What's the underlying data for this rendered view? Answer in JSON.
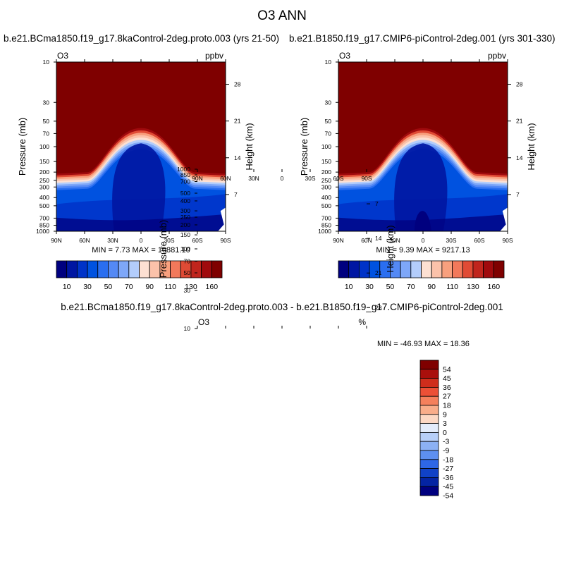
{
  "title": "O3 ANN",
  "palettes": {
    "abs": [
      "#00007f",
      "#0016a2",
      "#0033c8",
      "#0052e0",
      "#2a6ef0",
      "#5489f5",
      "#7ea7f8",
      "#b3cdfb",
      "#fde0d2",
      "#fbc2aa",
      "#f8a07e",
      "#f2795b",
      "#e04b35",
      "#c0251d",
      "#a00a0d",
      "#7f0000"
    ],
    "diff": [
      "#7f0000",
      "#a90f0c",
      "#cf2d1c",
      "#ec5036",
      "#f5805c",
      "#f9ad8a",
      "#fcd8c4",
      "#e3ecfb",
      "#b7cff8",
      "#8cb1f4",
      "#5d8ff0",
      "#2e67e6",
      "#1042c7",
      "#0424a3",
      "#00007f"
    ]
  },
  "chart_data": [
    {
      "type": "contour",
      "id": "left",
      "title": "b.e21.BCma1850.f19_g17.8kaControl-2deg.proto.003 (yrs 21-50)",
      "variable": "O3",
      "units": "ppbv",
      "min_label": "MIN =   7.73   MAX = 10881.10",
      "min": 7.73,
      "max": 10881.1,
      "xlabel": "",
      "ylabel": "Pressure (mb)",
      "ylabel_right": "Height (km)",
      "x_ticks": [
        "90N",
        "60N",
        "30N",
        "0",
        "30S",
        "60S",
        "90S"
      ],
      "y_ticks": [
        "10",
        "30",
        "50",
        "70",
        "100",
        "150",
        "200",
        "250",
        "300",
        "400",
        "500",
        "700",
        "850",
        "1000"
      ],
      "height_ticks": [
        "28",
        "21",
        "14",
        "7"
      ],
      "colorbar_labels": [
        "10",
        "30",
        "50",
        "70",
        "90",
        "110",
        "130",
        "160"
      ]
    },
    {
      "type": "contour",
      "id": "right",
      "title": "b.e21.B1850.f19_g17.CMIP6-piControl-2deg.001 (yrs 301-330)",
      "variable": "O3",
      "units": "ppbv",
      "min_label": "MIN =   9.39   MAX = 9217.13",
      "min": 9.39,
      "max": 9217.13,
      "xlabel": "",
      "ylabel": "Pressure (mb)",
      "ylabel_right": "Height (km)",
      "x_ticks": [
        "90N",
        "60N",
        "30N",
        "0",
        "30S",
        "60S",
        "90S"
      ],
      "y_ticks": [
        "10",
        "30",
        "50",
        "70",
        "100",
        "150",
        "200",
        "250",
        "300",
        "400",
        "500",
        "700",
        "850",
        "1000"
      ],
      "height_ticks": [
        "28",
        "21",
        "14",
        "7"
      ],
      "colorbar_labels": [
        "10",
        "30",
        "50",
        "70",
        "90",
        "110",
        "130",
        "160"
      ]
    },
    {
      "type": "contour",
      "id": "diff",
      "title": "b.e21.BCma1850.f19_g17.8kaControl-2deg.proto.003 - b.e21.B1850.f19_g17.CMIP6-piControl-2deg.001",
      "variable": "O3",
      "units": "%",
      "min_label": "MIN = -46.93  MAX =  18.36",
      "min": -46.93,
      "max": 18.36,
      "xlabel": "",
      "ylabel": "Pressure (mb)",
      "ylabel_right": "Height (km)",
      "x_ticks": [
        "90N",
        "60N",
        "30N",
        "0",
        "30S",
        "60S",
        "90S"
      ],
      "y_ticks": [
        "10",
        "30",
        "50",
        "70",
        "100",
        "150",
        "200",
        "250",
        "300",
        "400",
        "500",
        "700",
        "850",
        "1000"
      ],
      "height_ticks": [
        "28",
        "21",
        "14",
        "7"
      ],
      "colorbar_labels": [
        "54",
        "45",
        "36",
        "27",
        "18",
        "9",
        "3",
        "0",
        "-3",
        "-9",
        "-18",
        "-27",
        "-36",
        "-45",
        "-54"
      ]
    }
  ]
}
